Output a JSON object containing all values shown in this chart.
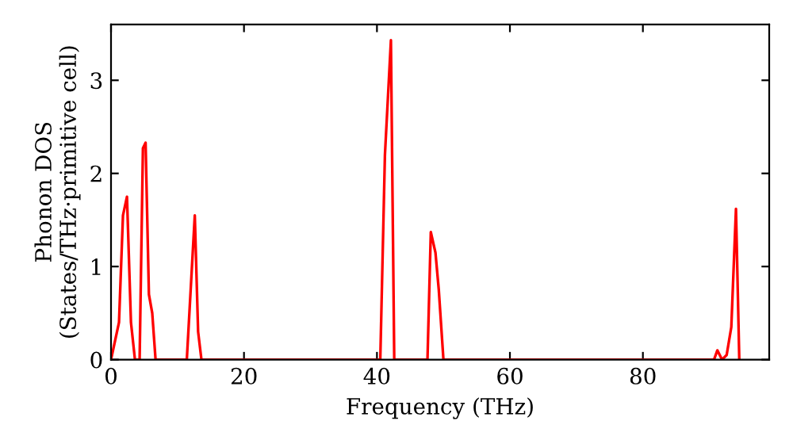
{
  "chart_data": {
    "type": "line",
    "xlabel": "Frequency (THz)",
    "ylabel": "Phonon DOS\n(States/THz·primitive cell)",
    "x": [
      0,
      0.3,
      1.2,
      1.8,
      2.4,
      3.0,
      3.6,
      4.3,
      4.8,
      5.2,
      5.7,
      6.2,
      6.7,
      11.4,
      12.6,
      13.1,
      13.6,
      40.5,
      41.2,
      42.1,
      42.6,
      47.6,
      48.1,
      48.8,
      49.3,
      50.0,
      90.7,
      91.2,
      91.9,
      92.6,
      93.3,
      94.0,
      94.5
    ],
    "series": [
      {
        "color": "#ff0000",
        "values": [
          0,
          0.1,
          0.4,
          1.55,
          1.75,
          0.4,
          0,
          0,
          2.27,
          2.33,
          0.7,
          0.5,
          0,
          0,
          1.55,
          0.3,
          0,
          0,
          2.2,
          3.43,
          0,
          0,
          1.37,
          1.15,
          0.75,
          0,
          0,
          0.1,
          0,
          0.05,
          0.35,
          1.62,
          0
        ]
      }
    ],
    "xlim": [
      0,
      99
    ],
    "ylim": [
      0,
      3.6
    ],
    "xticks": [
      0,
      20,
      40,
      60,
      80
    ],
    "yticks": [
      0,
      1,
      2,
      3
    ],
    "grid": false,
    "legend": false,
    "line_style": "solid",
    "marker": "none"
  }
}
